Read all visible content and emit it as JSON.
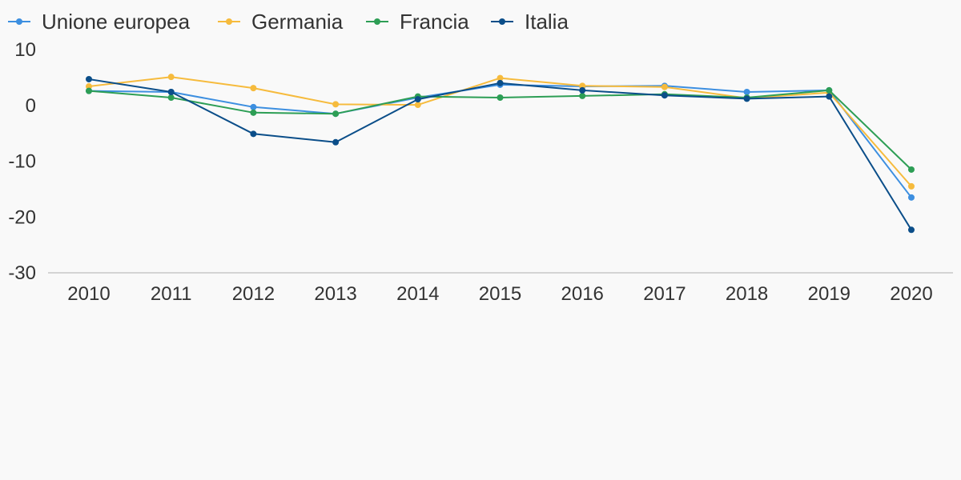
{
  "chart_data": {
    "type": "line",
    "title": "",
    "xlabel": "",
    "ylabel": "",
    "x": [
      "2010",
      "2011",
      "2012",
      "2013",
      "2014",
      "2015",
      "2016",
      "2017",
      "2018",
      "2019",
      "2020"
    ],
    "ylim": [
      -30,
      10
    ],
    "yticks": [
      10,
      0,
      -10,
      -20,
      -30
    ],
    "grid": false,
    "legend_position": "top-left",
    "series": [
      {
        "name": "Unione europea",
        "color": "#3d8fe0",
        "values": [
          2.6,
          2.4,
          -0.3,
          -1.5,
          1.4,
          3.7,
          3.4,
          3.5,
          2.4,
          2.7,
          -16.5
        ]
      },
      {
        "name": "Germania",
        "color": "#f6bb3d",
        "values": [
          3.4,
          5.1,
          3.1,
          0.2,
          0.1,
          4.9,
          3.5,
          3.3,
          1.3,
          2.3,
          -14.5
        ]
      },
      {
        "name": "Francia",
        "color": "#2d9e55",
        "values": [
          2.6,
          1.4,
          -1.3,
          -1.5,
          1.6,
          1.4,
          1.7,
          2.0,
          1.4,
          2.7,
          -11.5
        ]
      },
      {
        "name": "Italia",
        "color": "#0b4e89",
        "values": [
          4.7,
          2.4,
          -5.1,
          -6.6,
          1.1,
          4.0,
          2.7,
          1.8,
          1.2,
          1.6,
          -22.3
        ]
      }
    ]
  }
}
